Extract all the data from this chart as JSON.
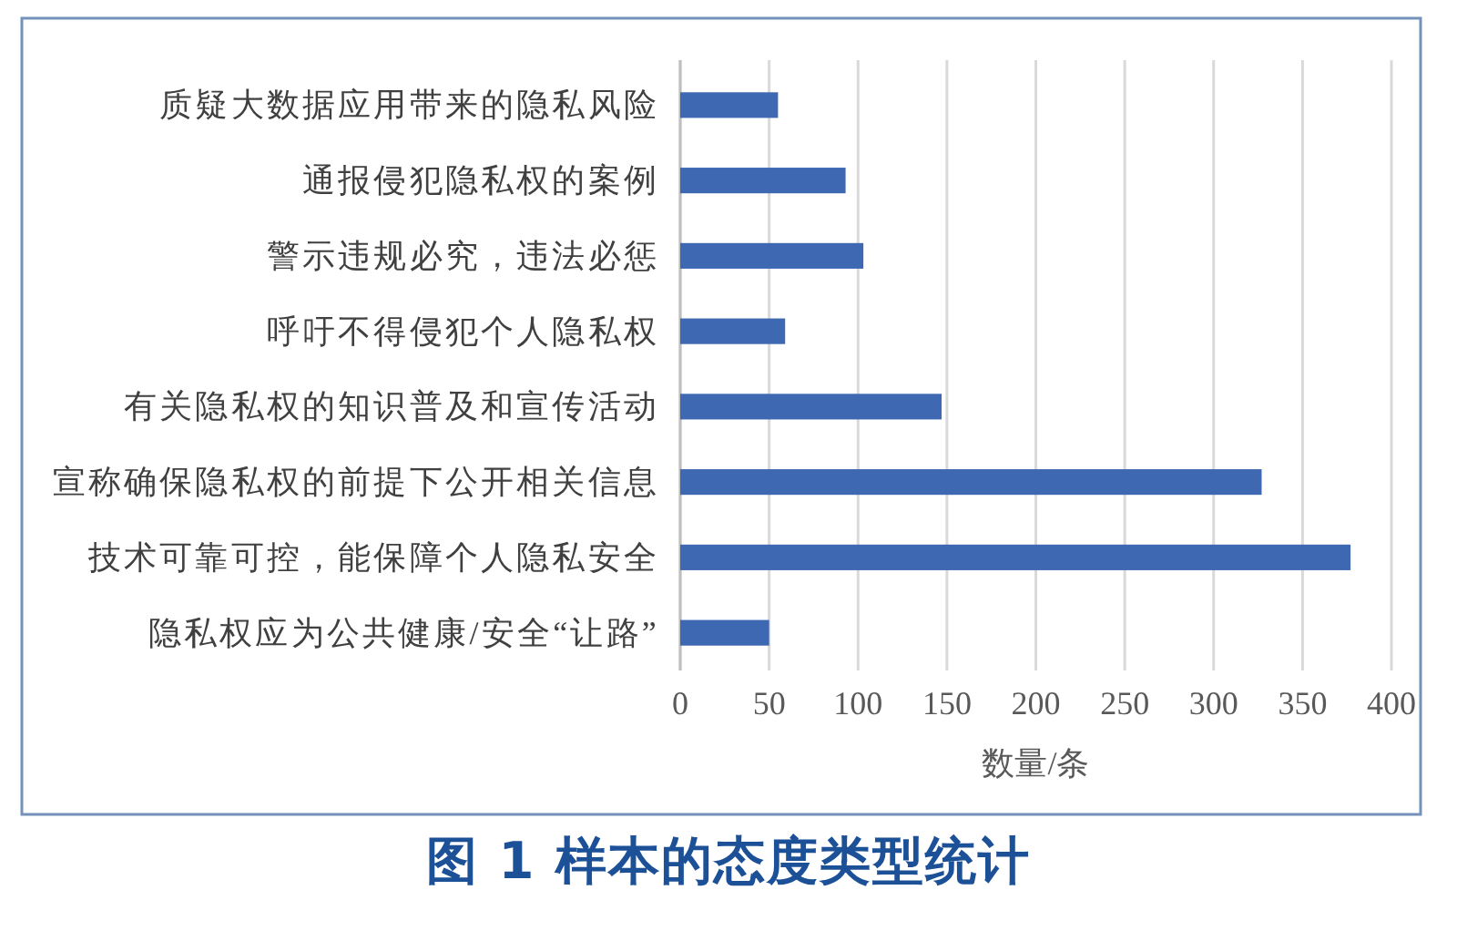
{
  "chart_data": {
    "type": "bar",
    "orientation": "horizontal",
    "title": "图 1 样本的态度类型统计",
    "xlabel": "数量/条",
    "categories": [
      "质疑大数据应用带来的隐私风险",
      "通报侵犯隐私权的案例",
      "警示违规必究，违法必惩",
      "呼吁不得侵犯个人隐私权",
      "有关隐私权的知识普及和宣传活动",
      "宣称确保隐私权的前提下公开相关信息",
      "技术可靠可控，能保障个人隐私安全",
      "隐私权应为公共健康/安全“让路”"
    ],
    "values": [
      55,
      93,
      103,
      59,
      147,
      327,
      377,
      50
    ],
    "color": "#3f68b2",
    "xlim": [
      0,
      400
    ],
    "xticks": [
      0,
      50,
      100,
      150,
      200,
      250,
      300,
      350,
      400
    ],
    "grid": "x"
  }
}
